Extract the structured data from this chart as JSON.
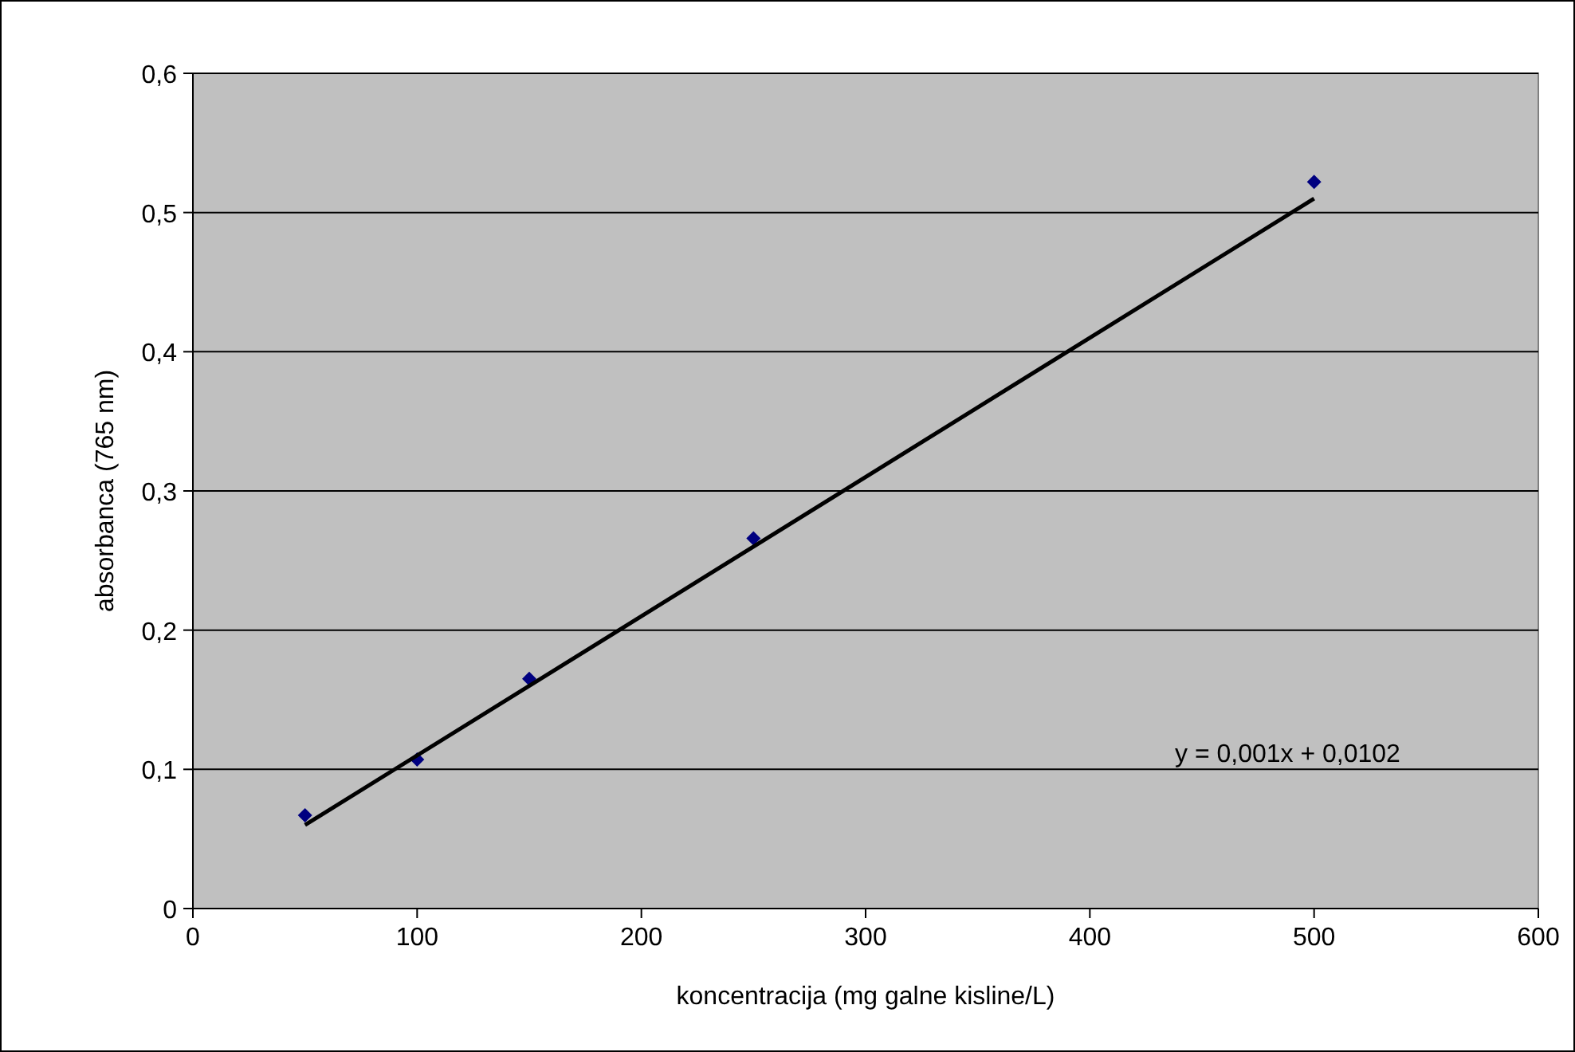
{
  "chart_data": {
    "type": "scatter",
    "xlabel": "koncentracija (mg galne kisline/L)",
    "ylabel": "absorbanca (765 nm)",
    "xlim": [
      0,
      600
    ],
    "xticks": [
      0,
      100,
      200,
      300,
      400,
      500,
      600
    ],
    "ylim": [
      0,
      0.6
    ],
    "yticks": [
      {
        "value": 0,
        "label": "0"
      },
      {
        "value": 0.1,
        "label": "0,1"
      },
      {
        "value": 0.2,
        "label": "0,2"
      },
      {
        "value": 0.3,
        "label": "0,3"
      },
      {
        "value": 0.4,
        "label": "0,4"
      },
      {
        "value": 0.5,
        "label": "0,5"
      },
      {
        "value": 0.6,
        "label": "0,6"
      }
    ],
    "grid": "y",
    "series": [
      {
        "type": "scatter",
        "marker": "diamond",
        "color": "#000080",
        "x": [
          50,
          100,
          150,
          250,
          500
        ],
        "values": [
          0.067,
          0.107,
          0.165,
          0.266,
          0.522
        ]
      },
      {
        "type": "line",
        "color": "#000000",
        "x": [
          50,
          500
        ],
        "values": [
          0.06,
          0.51
        ],
        "line_style": "solid"
      }
    ],
    "annotations": [
      "y = 0,001x + 0,0102"
    ]
  }
}
